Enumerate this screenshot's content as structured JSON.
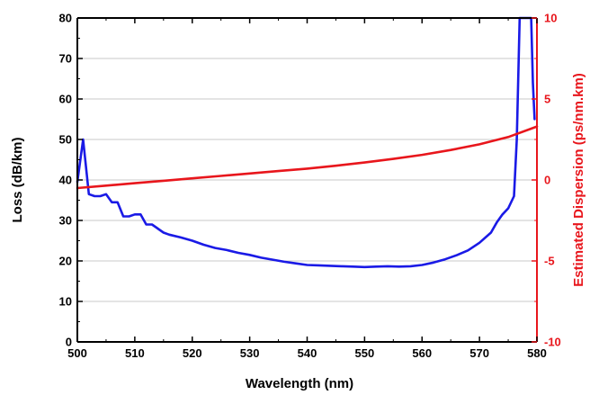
{
  "chart_data": {
    "type": "line",
    "xlabel": "Wavelength (nm)",
    "ylabel_left": "Loss (dB/km)",
    "ylabel_right": "Estimated Dispersion (ps/nm.km)",
    "xlim": [
      500,
      580
    ],
    "ylim_left": [
      0,
      80
    ],
    "ylim_right": [
      -10,
      10
    ],
    "x_ticks": [
      "500",
      "510",
      "520",
      "530",
      "540",
      "550",
      "560",
      "570",
      "580"
    ],
    "y_left_ticks": [
      "0",
      "10",
      "20",
      "30",
      "40",
      "50",
      "60",
      "70",
      "80"
    ],
    "y_right_ticks": [
      "-10",
      "-5",
      "0",
      "5",
      "10"
    ],
    "grid": "horizontal-major",
    "colors": {
      "loss": "#1a1ae6",
      "dispersion": "#e8161c",
      "right_axis": "#e8161c",
      "grid": "#c8c8c8"
    },
    "series": [
      {
        "axis": "left",
        "x": [
          500,
          501,
          502,
          503,
          504,
          505,
          506,
          507,
          508,
          509,
          510,
          511,
          512,
          513,
          514,
          515,
          516,
          518,
          520,
          522,
          524,
          526,
          528,
          530,
          532,
          534,
          536,
          538,
          540,
          542,
          544,
          546,
          548,
          550,
          552,
          554,
          556,
          558,
          560,
          562,
          564,
          566,
          568,
          570,
          572,
          573,
          574,
          575,
          576,
          576.5,
          577,
          577.2,
          577.5,
          578,
          578.5,
          579,
          579.3,
          579.6
        ],
        "values": [
          39.5,
          50.0,
          36.5,
          36.0,
          36.0,
          36.5,
          34.5,
          34.5,
          31.0,
          31.0,
          31.5,
          31.5,
          29.0,
          29.0,
          28.0,
          27.0,
          26.5,
          25.8,
          25.0,
          24.0,
          23.2,
          22.7,
          22.0,
          21.5,
          20.8,
          20.3,
          19.8,
          19.4,
          19.0,
          18.9,
          18.8,
          18.7,
          18.6,
          18.5,
          18.6,
          18.7,
          18.6,
          18.7,
          19.0,
          19.6,
          20.4,
          21.4,
          22.6,
          24.5,
          27.0,
          29.5,
          31.5,
          33.0,
          36.0,
          50.0,
          80.0,
          80.0,
          80.0,
          80.0,
          80.0,
          80.0,
          64.0,
          55.0
        ]
      },
      {
        "axis": "right",
        "x": [
          500,
          505,
          510,
          515,
          520,
          525,
          530,
          535,
          540,
          545,
          550,
          555,
          560,
          565,
          570,
          575,
          580
        ],
        "values": [
          -0.5,
          -0.35,
          -0.2,
          -0.05,
          0.1,
          0.25,
          0.4,
          0.55,
          0.7,
          0.88,
          1.08,
          1.3,
          1.55,
          1.85,
          2.2,
          2.65,
          3.3
        ]
      }
    ]
  }
}
